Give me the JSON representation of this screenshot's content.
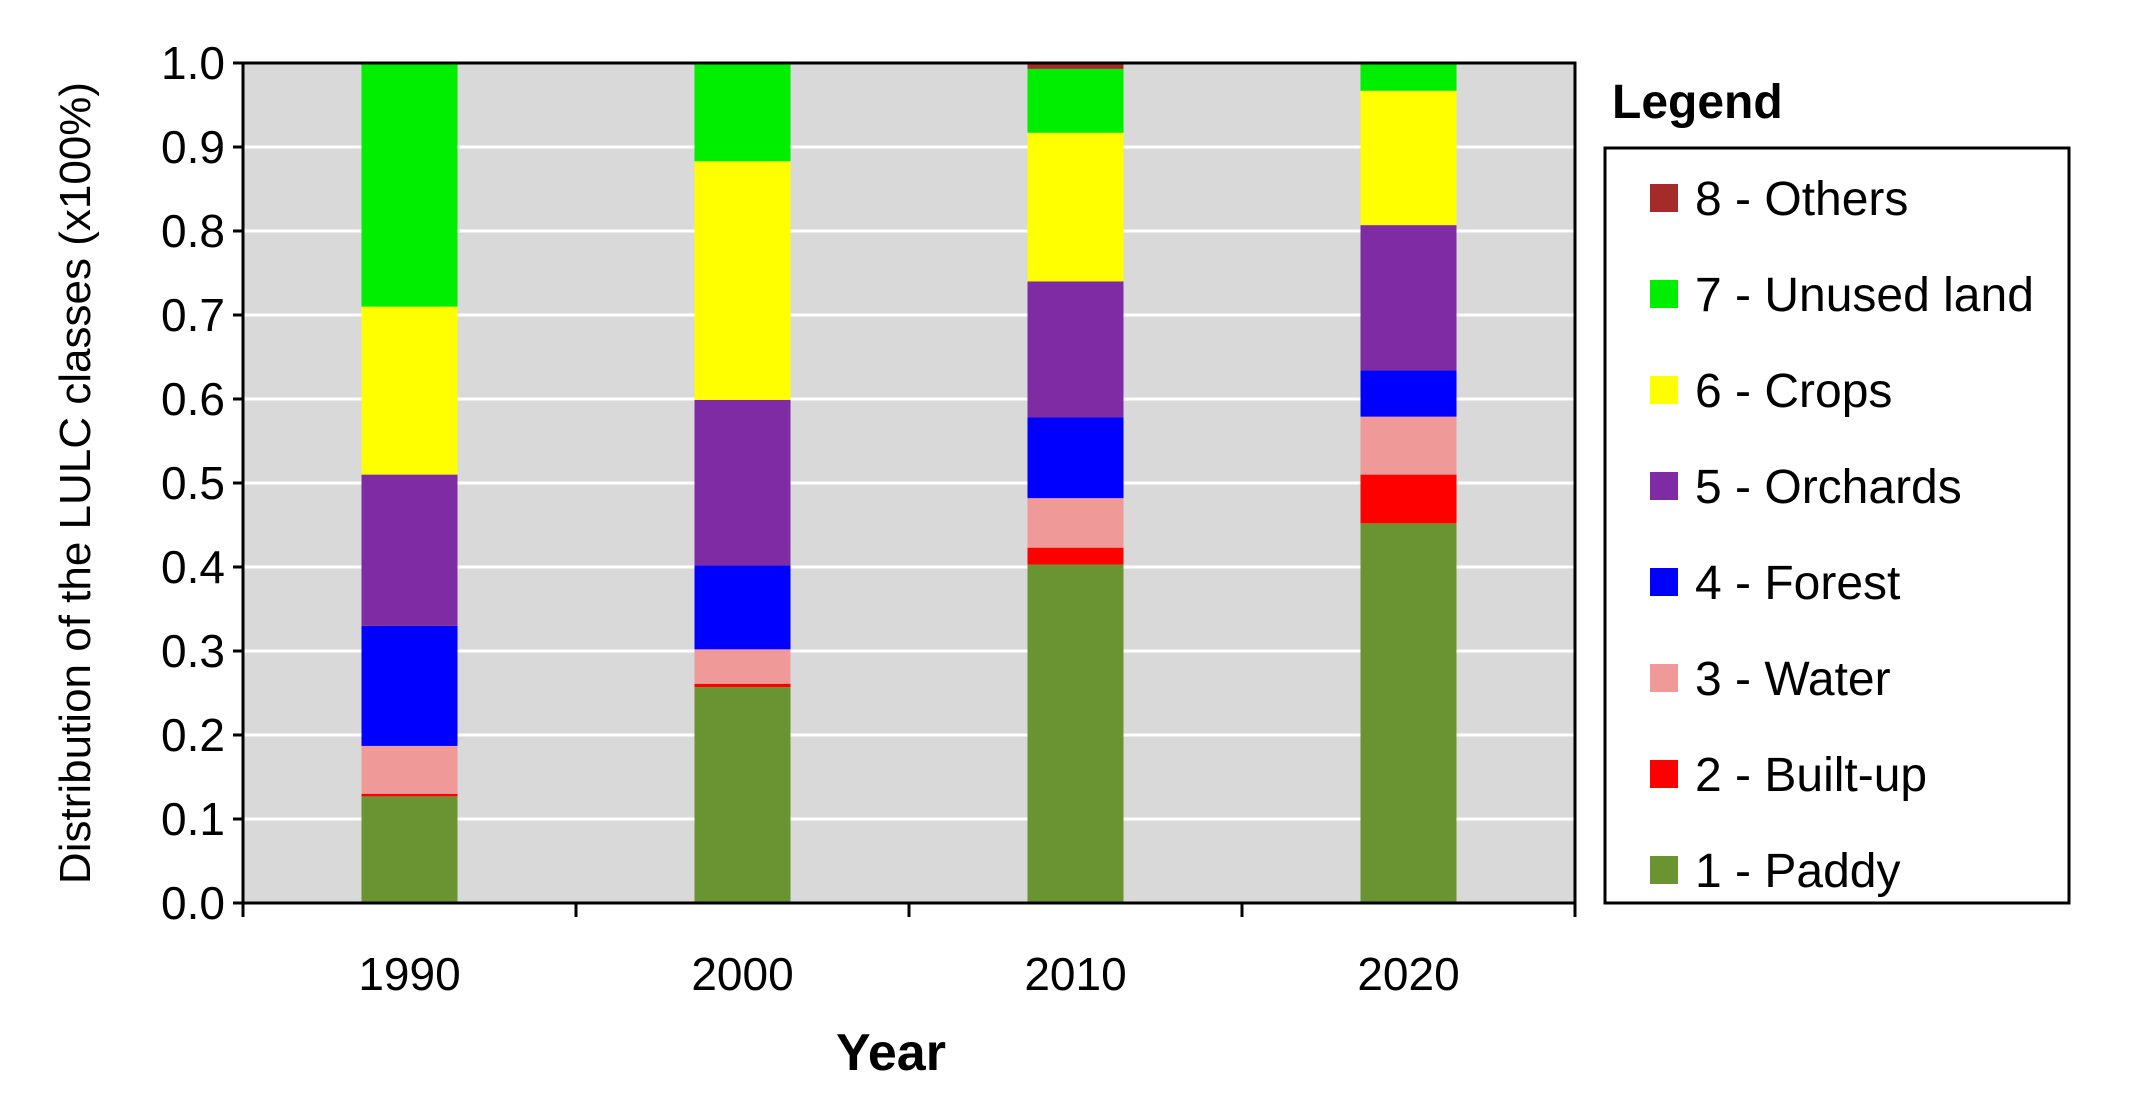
{
  "chart_data": {
    "type": "bar",
    "stacked": true,
    "categories": [
      "1990",
      "2000",
      "2010",
      "2020"
    ],
    "series": [
      {
        "name": "1 - Paddy",
        "color": "#6a9331",
        "values": [
          0.127,
          0.257,
          0.403,
          0.452
        ]
      },
      {
        "name": "2 - Built-up",
        "color": "#ff0000",
        "values": [
          0.003,
          0.004,
          0.02,
          0.058
        ]
      },
      {
        "name": "3 - Water",
        "color": "#f09999",
        "values": [
          0.057,
          0.041,
          0.059,
          0.069
        ]
      },
      {
        "name": "4 - Forest",
        "color": "#0000ff",
        "values": [
          0.143,
          0.1,
          0.096,
          0.055
        ]
      },
      {
        "name": "5 - Orchards",
        "color": "#7f2ba3",
        "values": [
          0.18,
          0.197,
          0.162,
          0.173
        ]
      },
      {
        "name": "6 - Crops",
        "color": "#ffff00",
        "values": [
          0.2,
          0.284,
          0.177,
          0.16
        ]
      },
      {
        "name": "7 - Unused land",
        "color": "#00ee00",
        "values": [
          0.29,
          0.117,
          0.076,
          0.033
        ]
      },
      {
        "name": "8 - Others",
        "color": "#a52a2a",
        "values": [
          0.0,
          0.0,
          0.007,
          0.0
        ]
      }
    ],
    "xlabel": "Year",
    "ylabel": "Distribution of the LULC classes (x100%)",
    "ylim": [
      0,
      1.0
    ],
    "yticks": [
      "0.0",
      "0.1",
      "0.2",
      "0.3",
      "0.4",
      "0.5",
      "0.6",
      "0.7",
      "0.8",
      "0.9",
      "1.0"
    ],
    "grid": true,
    "plot_background": "#d9d9d9",
    "legend": {
      "title": "Legend",
      "placement": "right"
    }
  }
}
